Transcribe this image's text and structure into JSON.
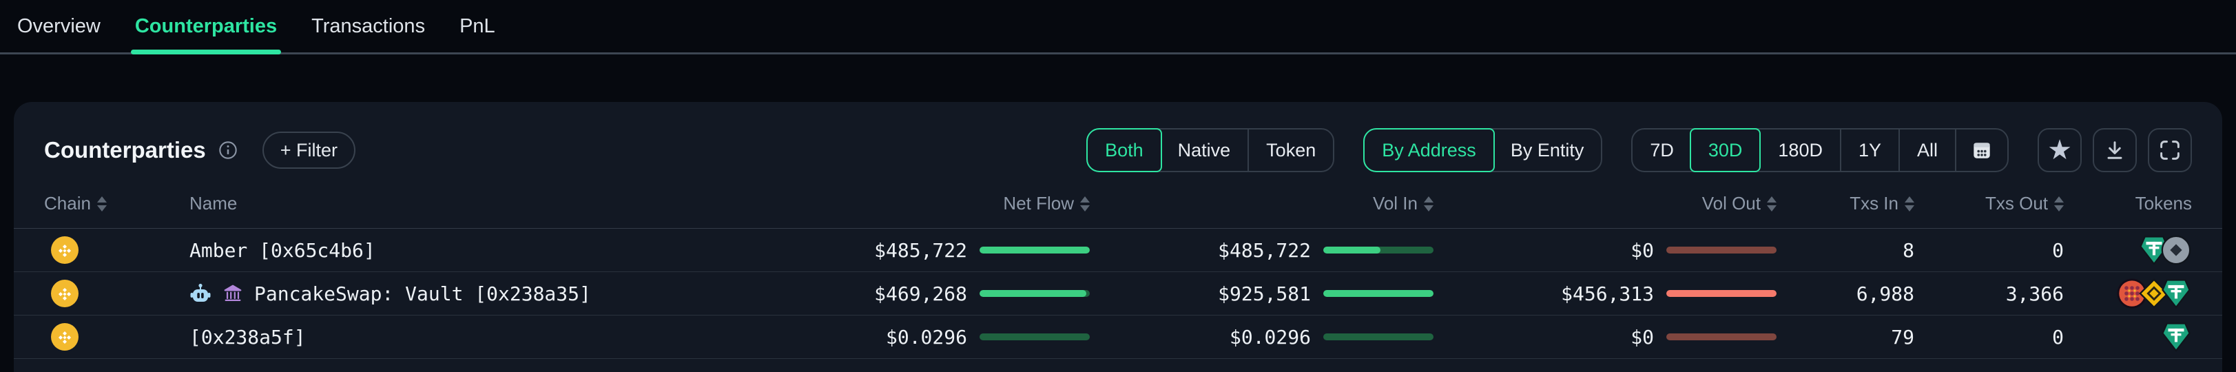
{
  "colors": {
    "accent_green": "#2ee5a2",
    "bar_green": "#3ccf82",
    "bar_green_track": "#1f6340",
    "bar_red": "#f57a6c",
    "bar_red_track": "#7f463f",
    "bnb_yellow": "#f3ba2f",
    "usdt_teal": "#1ba37d"
  },
  "tabbar": {
    "tabs": [
      {
        "label": "Overview",
        "active": false
      },
      {
        "label": "Counterparties",
        "active": true
      },
      {
        "label": "Transactions",
        "active": false
      },
      {
        "label": "PnL",
        "active": false
      }
    ]
  },
  "panel": {
    "title": "Counterparties",
    "filter_button": "+ Filter",
    "flow_toggle": {
      "options": [
        "Both",
        "Native",
        "Token"
      ],
      "selected": "Both"
    },
    "scope_toggle": {
      "options": [
        "By Address",
        "By Entity"
      ],
      "selected": "By Address"
    },
    "range_toggle": {
      "options": [
        "7D",
        "30D",
        "180D",
        "1Y",
        "All"
      ],
      "selected": "30D"
    },
    "action_icons": [
      "favorite-star-icon",
      "download-icon",
      "fullscreen-icon"
    ]
  },
  "table": {
    "columns": [
      {
        "label": "Chain",
        "sortable": true
      },
      {
        "label": "Name",
        "sortable": false
      },
      {
        "label": "Net Flow",
        "sortable": true
      },
      {
        "label": "Vol In",
        "sortable": true
      },
      {
        "label": "Vol Out",
        "sortable": true
      },
      {
        "label": "Txs In",
        "sortable": true
      },
      {
        "label": "Txs Out",
        "sortable": true
      },
      {
        "label": "Tokens",
        "sortable": false
      }
    ],
    "rows": [
      {
        "chain": "BNB Chain",
        "badges": [],
        "name": "Amber [0x65c4b6]",
        "net_flow": "$485,722",
        "net_flow_pct": 100,
        "vol_in": "$485,722",
        "vol_in_pct": 52,
        "vol_out": "$0",
        "vol_out_pct": 0,
        "txs_in": "8",
        "txs_out": "0",
        "tokens": [
          "tether",
          "coin"
        ]
      },
      {
        "chain": "BNB Chain",
        "badges": [
          "bot",
          "bank"
        ],
        "name": "PancakeSwap: Vault [0x238a35]",
        "net_flow": "$469,268",
        "net_flow_pct": 97,
        "vol_in": "$925,581",
        "vol_in_pct": 100,
        "vol_out": "$456,313",
        "vol_out_pct": 100,
        "txs_in": "6,988",
        "txs_out": "3,366",
        "tokens": [
          "cake",
          "bnb",
          "tether"
        ]
      },
      {
        "chain": "BNB Chain",
        "badges": [],
        "name": "[0x238a5f]",
        "net_flow": "$0.0296",
        "net_flow_pct": 0,
        "vol_in": "$0.0296",
        "vol_in_pct": 0,
        "vol_out": "$0",
        "vol_out_pct": 0,
        "txs_in": "79",
        "txs_out": "0",
        "tokens": [
          "tether"
        ]
      }
    ]
  }
}
